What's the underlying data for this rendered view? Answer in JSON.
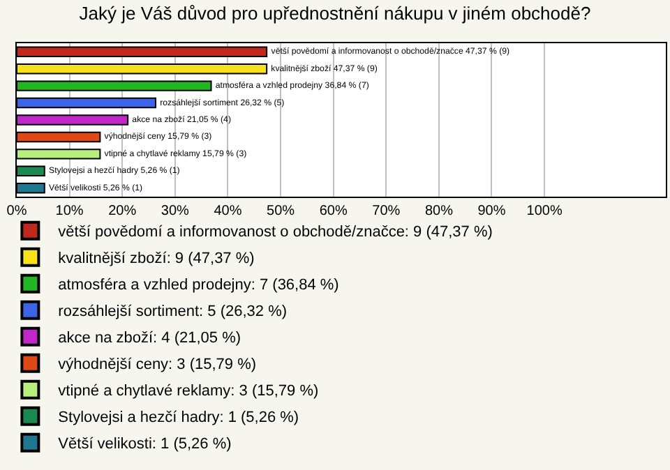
{
  "chart_data": {
    "type": "bar",
    "orientation": "horizontal",
    "title": "Jaký je Váš důvod pro upřednostnění nákupu v jiném obchodě?",
    "categories": [
      null,
      null,
      null,
      null,
      null,
      null,
      null,
      null,
      null
    ],
    "series": [
      {
        "name": "větší povědomí a informovanost o obchodě/značce: 9 (47,37 %)",
        "color": "#c0281c",
        "values": [
          47.37,
          null,
          null,
          null,
          null,
          null,
          null,
          null,
          null
        ],
        "value_labels": [
          "větší povědomí a informovanost o obchodě/značce 47,37 % (9)",
          null,
          null,
          null,
          null,
          null,
          null,
          null,
          null
        ]
      },
      {
        "name": "kvalitnější zboží: 9 (47,37 %)",
        "color": "#f7e11a",
        "values": [
          null,
          47.37,
          null,
          null,
          null,
          null,
          null,
          null,
          null
        ],
        "value_labels": [
          null,
          "kvalitnější zboží 47,37 % (9)",
          null,
          null,
          null,
          null,
          null,
          null,
          null
        ]
      },
      {
        "name": "atmosféra a vzhled prodejny: 7 (36,84 %)",
        "color": "#22b722",
        "values": [
          null,
          null,
          36.84,
          null,
          null,
          null,
          null,
          null,
          null
        ],
        "value_labels": [
          null,
          null,
          "atmosféra a vzhled prodejny 36,84 % (7)",
          null,
          null,
          null,
          null,
          null,
          null
        ]
      },
      {
        "name": "rozsáhlejší sortiment: 5 (26,32 %)",
        "color": "#3c64e6",
        "values": [
          null,
          null,
          null,
          26.32,
          null,
          null,
          null,
          null,
          null
        ],
        "value_labels": [
          null,
          null,
          null,
          "rozsáhlejší sortiment 26,32 % (5)",
          null,
          null,
          null,
          null,
          null
        ]
      },
      {
        "name": "akce na zboží: 4 (21,05 %)",
        "color": "#c026c8",
        "values": [
          null,
          null,
          null,
          null,
          21.05,
          null,
          null,
          null,
          null
        ],
        "value_labels": [
          null,
          null,
          null,
          null,
          "akce na zboží 21,05 % (4)",
          null,
          null,
          null,
          null
        ]
      },
      {
        "name": "výhodnější ceny: 3 (15,79 %)",
        "color": "#e04818",
        "values": [
          null,
          null,
          null,
          null,
          null,
          15.79,
          null,
          null,
          null
        ],
        "value_labels": [
          null,
          null,
          null,
          null,
          null,
          "výhodnější ceny 15,79 % (3)",
          null,
          null,
          null
        ]
      },
      {
        "name": "vtipné a chytlavé reklamy: 3 (15,79 %)",
        "color": "#b6f07a",
        "values": [
          null,
          null,
          null,
          null,
          null,
          null,
          15.79,
          null,
          null
        ],
        "value_labels": [
          null,
          null,
          null,
          null,
          null,
          null,
          "vtipné a chytlavé reklamy 15,79 % (3)",
          null,
          null
        ]
      },
      {
        "name": "Stylovejsi a hezčí hadry: 1 (5,26 %)",
        "color": "#1a8a50",
        "values": [
          null,
          null,
          null,
          null,
          null,
          null,
          null,
          5.26,
          null
        ],
        "value_labels": [
          null,
          null,
          null,
          null,
          null,
          null,
          null,
          "Stylovejsi a hezčí hadry 5,26 % (1)",
          null
        ]
      },
      {
        "name": "Větší velikosti: 1 (5,26 %)",
        "color": "#1e7890",
        "values": [
          null,
          null,
          null,
          null,
          null,
          null,
          null,
          null,
          5.26
        ],
        "value_labels": [
          null,
          null,
          null,
          null,
          null,
          null,
          null,
          null,
          "Větší velikosti 5,26 % (1)"
        ]
      }
    ],
    "xlim": [
      0,
      123
    ],
    "xticks": [
      {
        "value": 0,
        "label": "0%"
      },
      {
        "value": 10,
        "label": "10%"
      },
      {
        "value": 20,
        "label": "20%"
      },
      {
        "value": 30,
        "label": "30%"
      },
      {
        "value": 40,
        "label": "40%"
      },
      {
        "value": 50,
        "label": "50%"
      },
      {
        "value": 60,
        "label": "60%"
      },
      {
        "value": 70,
        "label": "70%"
      },
      {
        "value": 80,
        "label": "80%"
      },
      {
        "value": 90,
        "label": "90%"
      },
      {
        "value": 100,
        "label": "100%"
      }
    ],
    "grid": "x",
    "legend": "bottom",
    "tick_labels": "x"
  }
}
